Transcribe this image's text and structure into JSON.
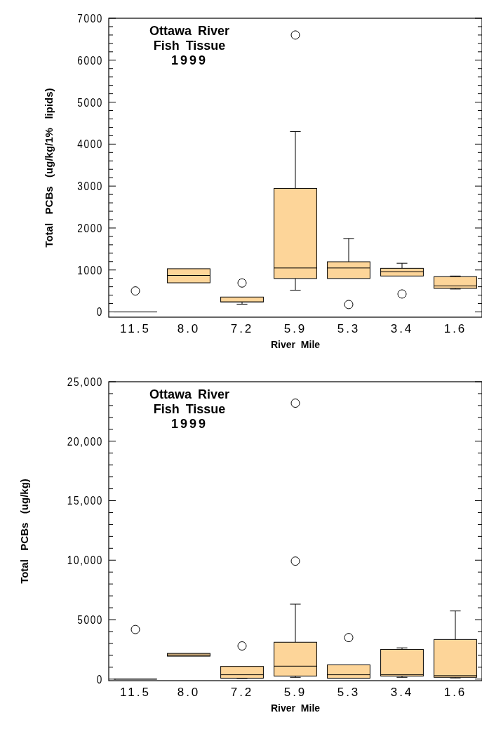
{
  "chart_data": [
    {
      "type": "box",
      "title": "Ottawa River\nFish Tissue\n1999",
      "xlabel": "River Mile",
      "ylabel": "Total   PCBs   (ug/kg/1%   lipids)",
      "categories": [
        "11.5",
        "8.0",
        "7.2",
        "5.9",
        "5.3",
        "3.4",
        "1.6"
      ],
      "ylim": [
        -125,
        7000
      ],
      "yticks": [
        0,
        {
          "value": 200,
          "label": null
        },
        {
          "value": 400,
          "label": null
        },
        {
          "value": 600,
          "label": null
        },
        {
          "value": 800,
          "label": null
        },
        1000,
        {
          "value": 1200,
          "label": null
        },
        {
          "value": 1400,
          "label": null
        },
        {
          "value": 1600,
          "label": null
        },
        {
          "value": 1800,
          "label": null
        },
        2000,
        {
          "value": 2200,
          "label": null
        },
        {
          "value": 2400,
          "label": null
        },
        {
          "value": 2600,
          "label": null
        },
        {
          "value": 2800,
          "label": null
        },
        3000,
        {
          "value": 3200,
          "label": null
        },
        {
          "value": 3400,
          "label": null
        },
        {
          "value": 3600,
          "label": null
        },
        {
          "value": 3800,
          "label": null
        },
        4000,
        {
          "value": 4200,
          "label": null
        },
        {
          "value": 4400,
          "label": null
        },
        {
          "value": 4600,
          "label": null
        },
        {
          "value": 4800,
          "label": null
        },
        5000,
        {
          "value": 5200,
          "label": null
        },
        {
          "value": 5400,
          "label": null
        },
        {
          "value": 5600,
          "label": null
        },
        {
          "value": 5800,
          "label": null
        },
        6000,
        {
          "value": 6200,
          "label": null
        },
        {
          "value": 6400,
          "label": null
        },
        {
          "value": 6600,
          "label": null
        },
        {
          "value": 6800,
          "label": null
        },
        7000
      ],
      "color": "#fdd599",
      "boxes": [
        {
          "low": 0,
          "q1": 0,
          "median": 0,
          "q3": 0,
          "high": 0,
          "outliers": [
            500
          ]
        },
        {
          "low": 694,
          "q1": 694,
          "median": 870,
          "q3": 1030,
          "high": 1030
        },
        {
          "low": 185,
          "q1": 236,
          "median": 240,
          "q3": 355,
          "high": 355,
          "outliers": [
            690
          ]
        },
        {
          "low": 517,
          "q1": 797,
          "median": 1048,
          "q3": 2945,
          "high": 4300,
          "outliers": [
            6600
          ]
        },
        {
          "low": 797,
          "q1": 797,
          "median": 1048,
          "q3": 1196,
          "high": 1750,
          "outliers": [
            177
          ]
        },
        {
          "low": 856,
          "q1": 856,
          "median": 960,
          "q3": 1040,
          "high": 1160,
          "outliers": [
            428
          ]
        },
        {
          "low": 546,
          "q1": 561,
          "median": 620,
          "q3": 841,
          "high": 856
        }
      ]
    },
    {
      "type": "box",
      "title": "Ottawa River\nFish Tissue\n1999",
      "xlabel": "River Mile",
      "ylabel": "Total   PCBs   (ug/kg)",
      "categories": [
        "11.5",
        "8.0",
        "7.2",
        "5.9",
        "5.3",
        "3.4",
        "1.6"
      ],
      "ylim": [
        -130,
        25000
      ],
      "yticks": [
        0,
        {
          "value": 1000,
          "label": null
        },
        {
          "value": 2000,
          "label": null
        },
        {
          "value": 3000,
          "label": null
        },
        {
          "value": 4000,
          "label": null
        },
        5000,
        {
          "value": 6000,
          "label": null
        },
        {
          "value": 7000,
          "label": null
        },
        {
          "value": 8000,
          "label": null
        },
        {
          "value": 9000,
          "label": null
        },
        {
          "value": 10000,
          "label": "10,000"
        },
        {
          "value": 11000,
          "label": null
        },
        {
          "value": 12000,
          "label": null
        },
        {
          "value": 13000,
          "label": null
        },
        {
          "value": 14000,
          "label": null
        },
        {
          "value": 15000,
          "label": "15,000"
        },
        {
          "value": 16000,
          "label": null
        },
        {
          "value": 17000,
          "label": null
        },
        {
          "value": 18000,
          "label": null
        },
        {
          "value": 19000,
          "label": null
        },
        {
          "value": 20000,
          "label": "20,000"
        },
        {
          "value": 21000,
          "label": null
        },
        {
          "value": 22000,
          "label": null
        },
        {
          "value": 23000,
          "label": null
        },
        {
          "value": 24000,
          "label": null
        },
        {
          "value": 25000,
          "label": "25,000"
        }
      ],
      "color": "#fdd599",
      "boxes": [
        {
          "low": 0,
          "q1": 0,
          "median": 0,
          "q3": 0,
          "high": 0,
          "outliers": [
            4170
          ]
        },
        {
          "low": 1930,
          "q1": 1930,
          "median": 2030,
          "q3": 2160,
          "high": 2160
        },
        {
          "low": 50,
          "q1": 80,
          "median": 365,
          "q3": 1070,
          "high": 1070,
          "outliers": [
            2790
          ]
        },
        {
          "low": 150,
          "q1": 260,
          "median": 1090,
          "q3": 3100,
          "high": 6300,
          "outliers": [
            9920,
            23200
          ]
        },
        {
          "low": 80,
          "q1": 80,
          "median": 365,
          "q3": 1200,
          "high": 1200,
          "outliers": [
            3490
          ]
        },
        {
          "low": 150,
          "q1": 260,
          "median": 365,
          "q3": 2500,
          "high": 2630
        },
        {
          "low": 100,
          "q1": 150,
          "median": 290,
          "q3": 3330,
          "high": 5730
        }
      ]
    }
  ]
}
